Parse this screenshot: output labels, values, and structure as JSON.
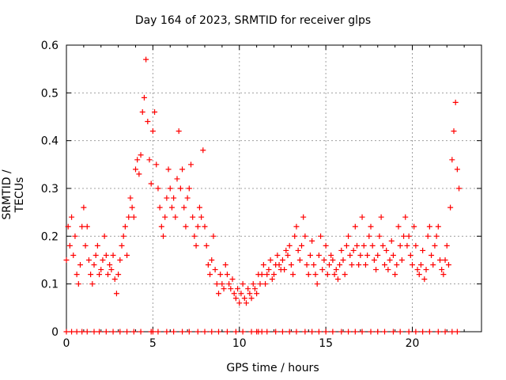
{
  "chart_data": {
    "type": "scatter",
    "title": "Day 164 of 2023, SRMTID for receiver glps",
    "xlabel": "GPS time / hours",
    "ylabel": "SRMTID / TECUs",
    "xlim": [
      0,
      24
    ],
    "ylim": [
      0,
      0.6
    ],
    "xticks": [
      0,
      5,
      10,
      15,
      20
    ],
    "yticks": [
      0,
      0.1,
      0.2,
      0.3,
      0.4,
      0.5,
      0.6
    ],
    "xtick_labels": [
      "0",
      "5",
      "10",
      "15",
      "20"
    ],
    "ytick_labels": [
      "0",
      "0.1",
      "0.2",
      "0.3",
      "0.4",
      "0.5",
      "0.6"
    ],
    "grid": true,
    "marker": "+",
    "color": "#ff0000",
    "series": [
      {
        "name": "SRMTID",
        "x": [
          0.0,
          0.1,
          0.2,
          0.3,
          0.4,
          0.5,
          0.6,
          0.7,
          0.8,
          0.9,
          1.0,
          1.1,
          1.2,
          1.3,
          1.4,
          1.5,
          1.6,
          1.7,
          1.8,
          1.9,
          2.0,
          2.1,
          2.2,
          2.3,
          2.4,
          2.5,
          2.6,
          2.7,
          2.8,
          2.9,
          3.0,
          3.1,
          3.2,
          3.3,
          3.4,
          3.5,
          3.6,
          3.7,
          3.8,
          3.9,
          4.0,
          4.1,
          4.2,
          4.3,
          4.4,
          4.5,
          4.6,
          4.7,
          4.8,
          4.9,
          5.0,
          5.1,
          5.2,
          5.3,
          5.4,
          5.5,
          5.6,
          5.7,
          5.8,
          5.9,
          6.0,
          6.1,
          6.2,
          6.3,
          6.4,
          6.5,
          6.6,
          6.7,
          6.8,
          6.9,
          7.0,
          7.1,
          7.2,
          7.3,
          7.4,
          7.5,
          7.6,
          7.7,
          7.8,
          7.9,
          8.0,
          8.1,
          8.2,
          8.3,
          8.4,
          8.5,
          8.6,
          8.7,
          8.8,
          8.9,
          9.0,
          9.1,
          9.2,
          9.3,
          9.4,
          9.5,
          9.6,
          9.7,
          9.8,
          9.9,
          10.0,
          10.1,
          10.2,
          10.3,
          10.4,
          10.5,
          10.6,
          10.7,
          10.8,
          10.9,
          11.0,
          11.1,
          11.2,
          11.3,
          11.4,
          11.5,
          11.6,
          11.7,
          11.8,
          11.9,
          12.0,
          12.1,
          12.2,
          12.3,
          12.4,
          12.5,
          12.6,
          12.7,
          12.8,
          12.9,
          13.0,
          13.1,
          13.2,
          13.3,
          13.4,
          13.5,
          13.6,
          13.7,
          13.8,
          13.9,
          14.0,
          14.1,
          14.2,
          14.3,
          14.4,
          14.5,
          14.6,
          14.7,
          14.8,
          14.9,
          15.0,
          15.1,
          15.2,
          15.3,
          15.4,
          15.5,
          15.6,
          15.7,
          15.8,
          15.9,
          16.0,
          16.1,
          16.2,
          16.3,
          16.4,
          16.5,
          16.6,
          16.7,
          16.8,
          16.9,
          17.0,
          17.1,
          17.2,
          17.3,
          17.4,
          17.5,
          17.6,
          17.7,
          17.8,
          17.9,
          18.0,
          18.1,
          18.2,
          18.3,
          18.4,
          18.5,
          18.6,
          18.7,
          18.8,
          18.9,
          19.0,
          19.1,
          19.2,
          19.3,
          19.4,
          19.5,
          19.6,
          19.7,
          19.8,
          19.9,
          20.0,
          20.1,
          20.2,
          20.3,
          20.4,
          20.5,
          20.6,
          20.7,
          20.8,
          20.9,
          21.0,
          21.1,
          21.2,
          21.3,
          21.4,
          21.5,
          21.6,
          21.7,
          21.8,
          21.9,
          22.0,
          22.1,
          22.2,
          22.3,
          22.4,
          22.5,
          22.6,
          22.7
        ],
        "y": [
          0.15,
          0.22,
          0.18,
          0.24,
          0.16,
          0.2,
          0.12,
          0.1,
          0.14,
          0.22,
          0.26,
          0.18,
          0.22,
          0.15,
          0.12,
          0.1,
          0.14,
          0.16,
          0.18,
          0.12,
          0.13,
          0.15,
          0.2,
          0.16,
          0.12,
          0.14,
          0.13,
          0.16,
          0.11,
          0.08,
          0.12,
          0.15,
          0.18,
          0.2,
          0.22,
          0.16,
          0.24,
          0.28,
          0.26,
          0.24,
          0.34,
          0.36,
          0.33,
          0.37,
          0.46,
          0.49,
          0.57,
          0.44,
          0.36,
          0.31,
          0.42,
          0.46,
          0.35,
          0.3,
          0.26,
          0.22,
          0.2,
          0.24,
          0.28,
          0.34,
          0.3,
          0.26,
          0.28,
          0.24,
          0.32,
          0.42,
          0.3,
          0.34,
          0.26,
          0.22,
          0.28,
          0.3,
          0.35,
          0.24,
          0.2,
          0.18,
          0.22,
          0.26,
          0.24,
          0.38,
          0.22,
          0.18,
          0.14,
          0.12,
          0.15,
          0.2,
          0.13,
          0.1,
          0.08,
          0.12,
          0.1,
          0.09,
          0.14,
          0.12,
          0.1,
          0.09,
          0.11,
          0.08,
          0.07,
          0.09,
          0.06,
          0.08,
          0.1,
          0.07,
          0.06,
          0.09,
          0.08,
          0.07,
          0.1,
          0.09,
          0.08,
          0.12,
          0.1,
          0.12,
          0.14,
          0.1,
          0.12,
          0.13,
          0.15,
          0.11,
          0.12,
          0.14,
          0.16,
          0.14,
          0.13,
          0.15,
          0.13,
          0.17,
          0.16,
          0.18,
          0.14,
          0.12,
          0.2,
          0.22,
          0.17,
          0.15,
          0.18,
          0.24,
          0.2,
          0.14,
          0.12,
          0.16,
          0.19,
          0.14,
          0.12,
          0.1,
          0.16,
          0.2,
          0.13,
          0.15,
          0.18,
          0.12,
          0.14,
          0.16,
          0.15,
          0.12,
          0.13,
          0.11,
          0.14,
          0.17,
          0.15,
          0.12,
          0.18,
          0.2,
          0.16,
          0.14,
          0.17,
          0.22,
          0.18,
          0.14,
          0.16,
          0.24,
          0.18,
          0.14,
          0.16,
          0.2,
          0.22,
          0.18,
          0.15,
          0.13,
          0.16,
          0.2,
          0.24,
          0.18,
          0.14,
          0.17,
          0.13,
          0.15,
          0.19,
          0.16,
          0.12,
          0.14,
          0.22,
          0.18,
          0.15,
          0.2,
          0.24,
          0.18,
          0.2,
          0.16,
          0.14,
          0.22,
          0.18,
          0.13,
          0.12,
          0.14,
          0.17,
          0.11,
          0.13,
          0.2,
          0.22,
          0.16,
          0.14,
          0.18,
          0.2,
          0.22,
          0.15,
          0.13,
          0.12,
          0.15,
          0.18,
          0.14,
          0.26,
          0.36,
          0.42,
          0.48,
          0.34,
          0.3
        ],
        "baseline_hours": [
          0,
          0.3,
          0.6,
          0.9,
          1.2,
          1.6,
          1.9,
          2.3,
          2.7,
          3.1,
          3.5,
          3.9,
          4.3,
          4.9,
          5.0,
          5.3,
          5.8,
          6.2,
          6.7,
          7.1,
          7.6,
          8.0,
          8.4,
          8.8,
          9.3,
          9.8,
          10.2,
          10.7,
          11.0,
          11.1,
          11.3,
          11.6,
          12.1,
          12.5,
          12.9,
          13.3,
          13.8,
          14.2,
          14.6,
          15.0,
          15.4,
          15.9,
          16.3,
          16.7,
          17.1,
          17.6,
          18.0,
          18.4,
          18.9,
          19.3,
          19.8,
          20.2,
          20.6,
          21.0,
          21.5,
          21.9,
          22.3,
          22.6
        ]
      }
    ]
  }
}
